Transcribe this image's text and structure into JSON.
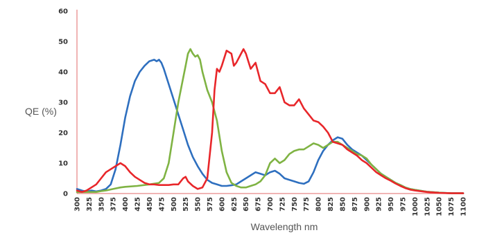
{
  "chart_data": {
    "type": "line",
    "title": "",
    "xlabel": "Wavelength nm",
    "ylabel": "QE (%)",
    "xlim": [
      300,
      1100
    ],
    "ylim": [
      0,
      60
    ],
    "grid": false,
    "y_ticks": [
      "0",
      "10",
      "20",
      "30",
      "40",
      "50",
      "60"
    ],
    "x_ticks": [
      "300",
      "325",
      "350",
      "375",
      "400",
      "425",
      "450",
      "475",
      "500",
      "525",
      "550",
      "575",
      "600",
      "625",
      "650",
      "675",
      "700",
      "725",
      "750",
      "775",
      "800",
      "825",
      "850",
      "875",
      "900",
      "925",
      "950",
      "975",
      "1000",
      "1025",
      "1050",
      "1075",
      "1100"
    ],
    "series": [
      {
        "color": "#2e6fbf",
        "points": [
          [
            300,
            1.5
          ],
          [
            310,
            1
          ],
          [
            320,
            0.6
          ],
          [
            330,
            1
          ],
          [
            340,
            0.7
          ],
          [
            350,
            1
          ],
          [
            360,
            1.5
          ],
          [
            370,
            3
          ],
          [
            380,
            8
          ],
          [
            390,
            16
          ],
          [
            400,
            25
          ],
          [
            410,
            32
          ],
          [
            420,
            37
          ],
          [
            430,
            40
          ],
          [
            440,
            42
          ],
          [
            450,
            43.5
          ],
          [
            460,
            44
          ],
          [
            465,
            43.5
          ],
          [
            470,
            44
          ],
          [
            475,
            43
          ],
          [
            480,
            41
          ],
          [
            490,
            36
          ],
          [
            500,
            31
          ],
          [
            510,
            26
          ],
          [
            520,
            21
          ],
          [
            530,
            16
          ],
          [
            540,
            12
          ],
          [
            550,
            9
          ],
          [
            560,
            6.5
          ],
          [
            570,
            4.5
          ],
          [
            580,
            3.5
          ],
          [
            590,
            3
          ],
          [
            600,
            2.5
          ],
          [
            610,
            2.5
          ],
          [
            620,
            2.7
          ],
          [
            630,
            3
          ],
          [
            640,
            4
          ],
          [
            650,
            5
          ],
          [
            660,
            6
          ],
          [
            670,
            7
          ],
          [
            680,
            6.5
          ],
          [
            690,
            6
          ],
          [
            700,
            7
          ],
          [
            710,
            7.5
          ],
          [
            720,
            6.5
          ],
          [
            730,
            5
          ],
          [
            740,
            4.5
          ],
          [
            750,
            4
          ],
          [
            760,
            3.5
          ],
          [
            770,
            3.2
          ],
          [
            780,
            4
          ],
          [
            790,
            7
          ],
          [
            800,
            11
          ],
          [
            810,
            14
          ],
          [
            820,
            16
          ],
          [
            830,
            17.5
          ],
          [
            840,
            18.5
          ],
          [
            850,
            18
          ],
          [
            860,
            16
          ],
          [
            870,
            14.5
          ],
          [
            880,
            13.5
          ],
          [
            890,
            12.5
          ],
          [
            900,
            11
          ],
          [
            910,
            9.5
          ],
          [
            920,
            8
          ],
          [
            930,
            6.5
          ],
          [
            940,
            5.5
          ],
          [
            950,
            4.5
          ],
          [
            960,
            3.5
          ],
          [
            970,
            2.8
          ],
          [
            980,
            2
          ],
          [
            990,
            1.5
          ],
          [
            1000,
            1.2
          ],
          [
            1025,
            0.6
          ],
          [
            1050,
            0.3
          ],
          [
            1075,
            0.1
          ],
          [
            1100,
            0.1
          ]
        ]
      },
      {
        "color": "#7fb343",
        "points": [
          [
            300,
            0.5
          ],
          [
            320,
            0.5
          ],
          [
            340,
            0.5
          ],
          [
            350,
            0.8
          ],
          [
            360,
            1
          ],
          [
            375,
            1.5
          ],
          [
            390,
            2
          ],
          [
            400,
            2.2
          ],
          [
            425,
            2.5
          ],
          [
            450,
            3
          ],
          [
            470,
            3.5
          ],
          [
            480,
            5
          ],
          [
            490,
            10
          ],
          [
            500,
            20
          ],
          [
            510,
            30
          ],
          [
            520,
            38
          ],
          [
            525,
            42
          ],
          [
            530,
            46
          ],
          [
            535,
            47.5
          ],
          [
            540,
            46
          ],
          [
            545,
            45
          ],
          [
            550,
            45.5
          ],
          [
            555,
            44
          ],
          [
            560,
            40
          ],
          [
            570,
            34
          ],
          [
            580,
            30
          ],
          [
            590,
            24
          ],
          [
            600,
            14
          ],
          [
            610,
            7
          ],
          [
            620,
            3.5
          ],
          [
            630,
            2.5
          ],
          [
            640,
            2
          ],
          [
            650,
            2
          ],
          [
            660,
            2.5
          ],
          [
            670,
            3
          ],
          [
            680,
            4
          ],
          [
            690,
            6
          ],
          [
            700,
            10
          ],
          [
            710,
            11.5
          ],
          [
            720,
            10
          ],
          [
            730,
            11
          ],
          [
            740,
            13
          ],
          [
            750,
            14
          ],
          [
            760,
            14.5
          ],
          [
            770,
            14.5
          ],
          [
            780,
            15.5
          ],
          [
            790,
            16.5
          ],
          [
            800,
            16
          ],
          [
            810,
            15
          ],
          [
            820,
            16
          ],
          [
            830,
            17
          ],
          [
            840,
            17
          ],
          [
            850,
            16
          ],
          [
            860,
            15
          ],
          [
            870,
            14
          ],
          [
            880,
            13
          ],
          [
            890,
            12.5
          ],
          [
            900,
            11.5
          ],
          [
            910,
            9.5
          ],
          [
            920,
            8
          ],
          [
            930,
            6.5
          ],
          [
            940,
            5.5
          ],
          [
            950,
            4.5
          ],
          [
            960,
            3.5
          ],
          [
            970,
            2.8
          ],
          [
            980,
            2
          ],
          [
            990,
            1.5
          ],
          [
            1000,
            1.2
          ],
          [
            1025,
            0.6
          ],
          [
            1050,
            0.3
          ],
          [
            1075,
            0.1
          ],
          [
            1100,
            0.1
          ]
        ]
      },
      {
        "color": "#e8262a",
        "points": [
          [
            300,
            1
          ],
          [
            310,
            0.5
          ],
          [
            320,
            1
          ],
          [
            330,
            2
          ],
          [
            340,
            3
          ],
          [
            350,
            5
          ],
          [
            360,
            7
          ],
          [
            370,
            8
          ],
          [
            380,
            9
          ],
          [
            390,
            10
          ],
          [
            400,
            9
          ],
          [
            410,
            7
          ],
          [
            420,
            5.5
          ],
          [
            430,
            4.5
          ],
          [
            440,
            3.5
          ],
          [
            450,
            3
          ],
          [
            460,
            3
          ],
          [
            470,
            2.8
          ],
          [
            480,
            2.8
          ],
          [
            490,
            2.8
          ],
          [
            500,
            3
          ],
          [
            510,
            3
          ],
          [
            520,
            5
          ],
          [
            525,
            5.5
          ],
          [
            530,
            4
          ],
          [
            540,
            2.5
          ],
          [
            550,
            1.5
          ],
          [
            560,
            2
          ],
          [
            570,
            5
          ],
          [
            580,
            20
          ],
          [
            585,
            34
          ],
          [
            590,
            41
          ],
          [
            595,
            40
          ],
          [
            600,
            42
          ],
          [
            610,
            47
          ],
          [
            620,
            46
          ],
          [
            625,
            42
          ],
          [
            630,
            43
          ],
          [
            640,
            46
          ],
          [
            645,
            47.5
          ],
          [
            650,
            46
          ],
          [
            660,
            41
          ],
          [
            670,
            43
          ],
          [
            680,
            37
          ],
          [
            690,
            36
          ],
          [
            700,
            33
          ],
          [
            710,
            33
          ],
          [
            720,
            35
          ],
          [
            730,
            30
          ],
          [
            740,
            29
          ],
          [
            750,
            29
          ],
          [
            760,
            31
          ],
          [
            770,
            28
          ],
          [
            780,
            26
          ],
          [
            790,
            24
          ],
          [
            800,
            23.5
          ],
          [
            810,
            22
          ],
          [
            820,
            20
          ],
          [
            830,
            17
          ],
          [
            840,
            16.5
          ],
          [
            850,
            16
          ],
          [
            860,
            14.5
          ],
          [
            870,
            13.5
          ],
          [
            880,
            12.5
          ],
          [
            890,
            11
          ],
          [
            900,
            10
          ],
          [
            910,
            8.5
          ],
          [
            920,
            7
          ],
          [
            930,
            6
          ],
          [
            940,
            5
          ],
          [
            950,
            4.2
          ],
          [
            960,
            3.3
          ],
          [
            970,
            2.5
          ],
          [
            980,
            1.8
          ],
          [
            990,
            1.3
          ],
          [
            1000,
            1
          ],
          [
            1025,
            0.5
          ],
          [
            1050,
            0.2
          ],
          [
            1075,
            0.1
          ],
          [
            1100,
            0.1
          ]
        ]
      }
    ]
  }
}
